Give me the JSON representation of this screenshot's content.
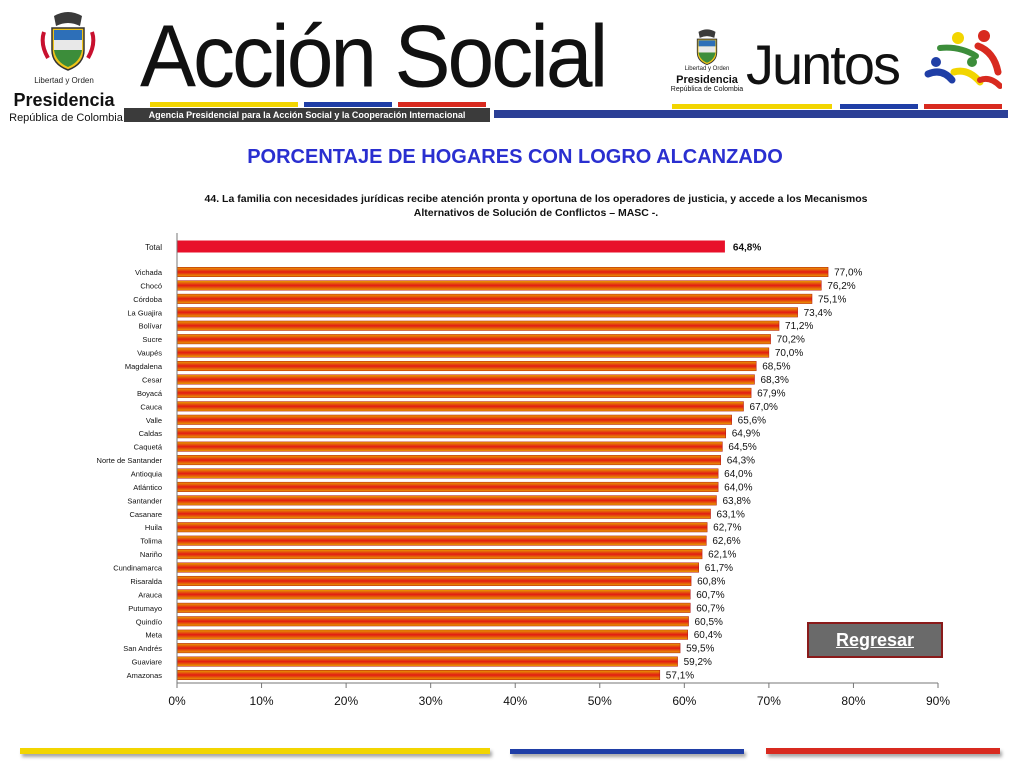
{
  "header": {
    "left_logo": {
      "motto": "Libertad y Orden",
      "presidencia": "Presidencia",
      "republica": "República de Colombia"
    },
    "accion_social": {
      "title": "Acción Social",
      "subtitle": "Agencia Presidencial para la Acción Social y la Cooperación Internacional"
    },
    "right_logo": {
      "motto": "Libertad y Orden",
      "presidencia": "Presidencia",
      "republica": "República de Colombia",
      "juntos": "Juntos"
    }
  },
  "page_title": "PORCENTAJE DE HOGARES CON LOGRO ALCANZADO",
  "back_button": {
    "label": "Regresar"
  },
  "colors": {
    "accent_yellow": "#f2d500",
    "accent_blue": "#1f3ea6",
    "accent_red": "#d82a1f",
    "title_blue": "#2a2fd0",
    "total_bar": "#e8102a",
    "bar_start": "#e9a100",
    "bar_end": "#e21b14"
  },
  "chart_data": {
    "type": "bar",
    "orientation": "horizontal",
    "title": "44. La familia con necesidades jurídicas recibe atención pronta y oportuna de los operadores de justicia, y accede a los Mecanismos Alternativos de Solución de Conflictos – MASC -.",
    "title_lines": [
      "44. La familia con necesidades jurídicas recibe atención pronta y oportuna de los operadores de justicia, y accede a los Mecanismos",
      "Alternativos de Solución de Conflictos – MASC -."
    ],
    "total": {
      "label": "Total",
      "value": 64.8,
      "data_label": "64,8%"
    },
    "categories": [
      "Vichada",
      "Chocó",
      "Córdoba",
      "La Guajira",
      "Bolívar",
      "Sucre",
      "Vaupés",
      "Magdalena",
      "Cesar",
      "Boyacá",
      "Cauca",
      "Valle",
      "Caldas",
      "Caquetá",
      "Norte de Santander",
      "Antioquia",
      "Atlántico",
      "Santander",
      "Casanare",
      "Huila",
      "Tolima",
      "Nariño",
      "Cundinamarca",
      "Risaralda",
      "Arauca",
      "Putumayo",
      "Quindío",
      "Meta",
      "San Andrés",
      "Guaviare",
      "Amazonas"
    ],
    "values": [
      77.0,
      76.2,
      75.1,
      73.4,
      71.2,
      70.2,
      70.0,
      68.5,
      68.3,
      67.9,
      67.0,
      65.6,
      64.9,
      64.5,
      64.3,
      64.0,
      64.0,
      63.8,
      63.1,
      62.7,
      62.6,
      62.1,
      61.7,
      60.8,
      60.7,
      60.7,
      60.5,
      60.4,
      59.5,
      59.2,
      57.1
    ],
    "data_labels": [
      "77,0%",
      "76,2%",
      "75,1%",
      "73,4%",
      "71,2%",
      "70,2%",
      "70,0%",
      "68,5%",
      "68,3%",
      "67,9%",
      "67,0%",
      "65,6%",
      "64,9%",
      "64,5%",
      "64,3%",
      "64,0%",
      "64,0%",
      "63,8%",
      "63,1%",
      "62,7%",
      "62,6%",
      "62,1%",
      "61,7%",
      "60,8%",
      "60,7%",
      "60,7%",
      "60,5%",
      "60,4%",
      "59,5%",
      "59,2%",
      "57,1%"
    ],
    "xlim": [
      0,
      90
    ],
    "xticks": [
      0,
      10,
      20,
      30,
      40,
      50,
      60,
      70,
      80,
      90
    ],
    "xtick_labels": [
      "0%",
      "10%",
      "20%",
      "30%",
      "40%",
      "50%",
      "60%",
      "70%",
      "80%",
      "90%"
    ],
    "xlabel": "",
    "ylabel": "",
    "grid": false,
    "legend": "none"
  }
}
